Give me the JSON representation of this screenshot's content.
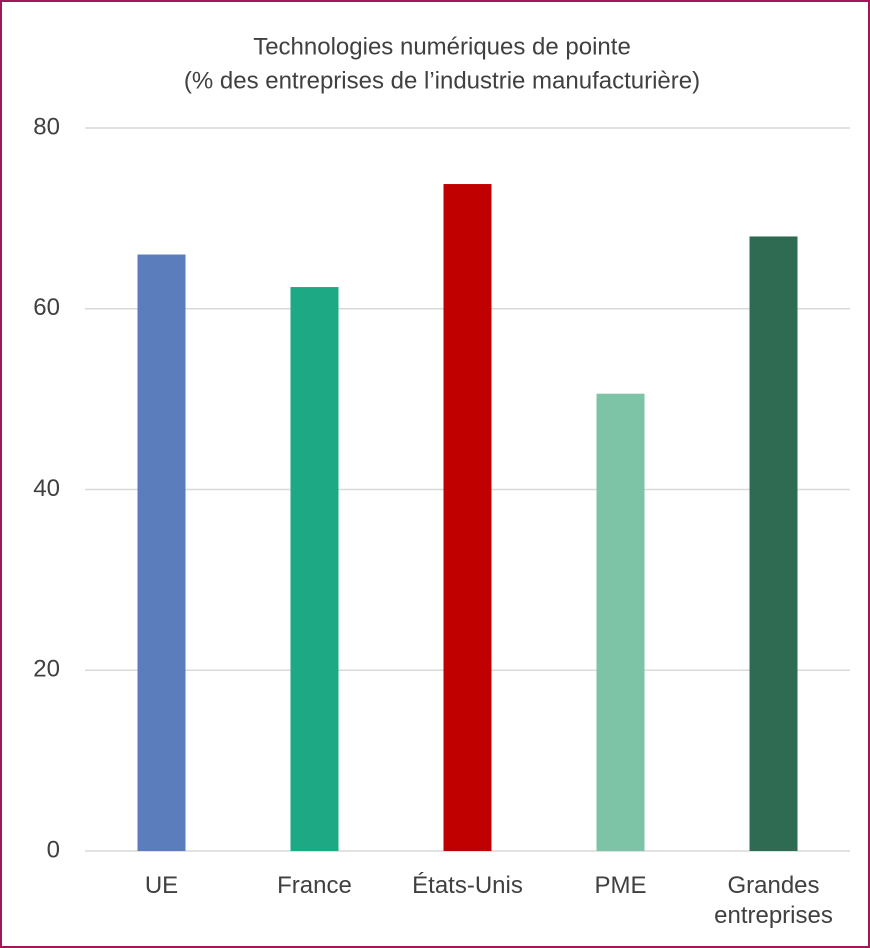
{
  "chart_data": {
    "type": "bar",
    "title": "Technologies numériques de pointe",
    "subtitle": "(% des entreprises de l’industrie manufacturière)",
    "categories": [
      "UE",
      "France",
      "États-Unis",
      "PME",
      "Grandes entreprises"
    ],
    "values": [
      66,
      62.4,
      73.8,
      50.6,
      68
    ],
    "colors": [
      "#5b7dbb",
      "#1ea985",
      "#c00000",
      "#7dc3a5",
      "#2f6b52"
    ],
    "ylim": [
      0,
      80
    ],
    "yticks": [
      0,
      20,
      40,
      60,
      80
    ],
    "grid": true
  }
}
